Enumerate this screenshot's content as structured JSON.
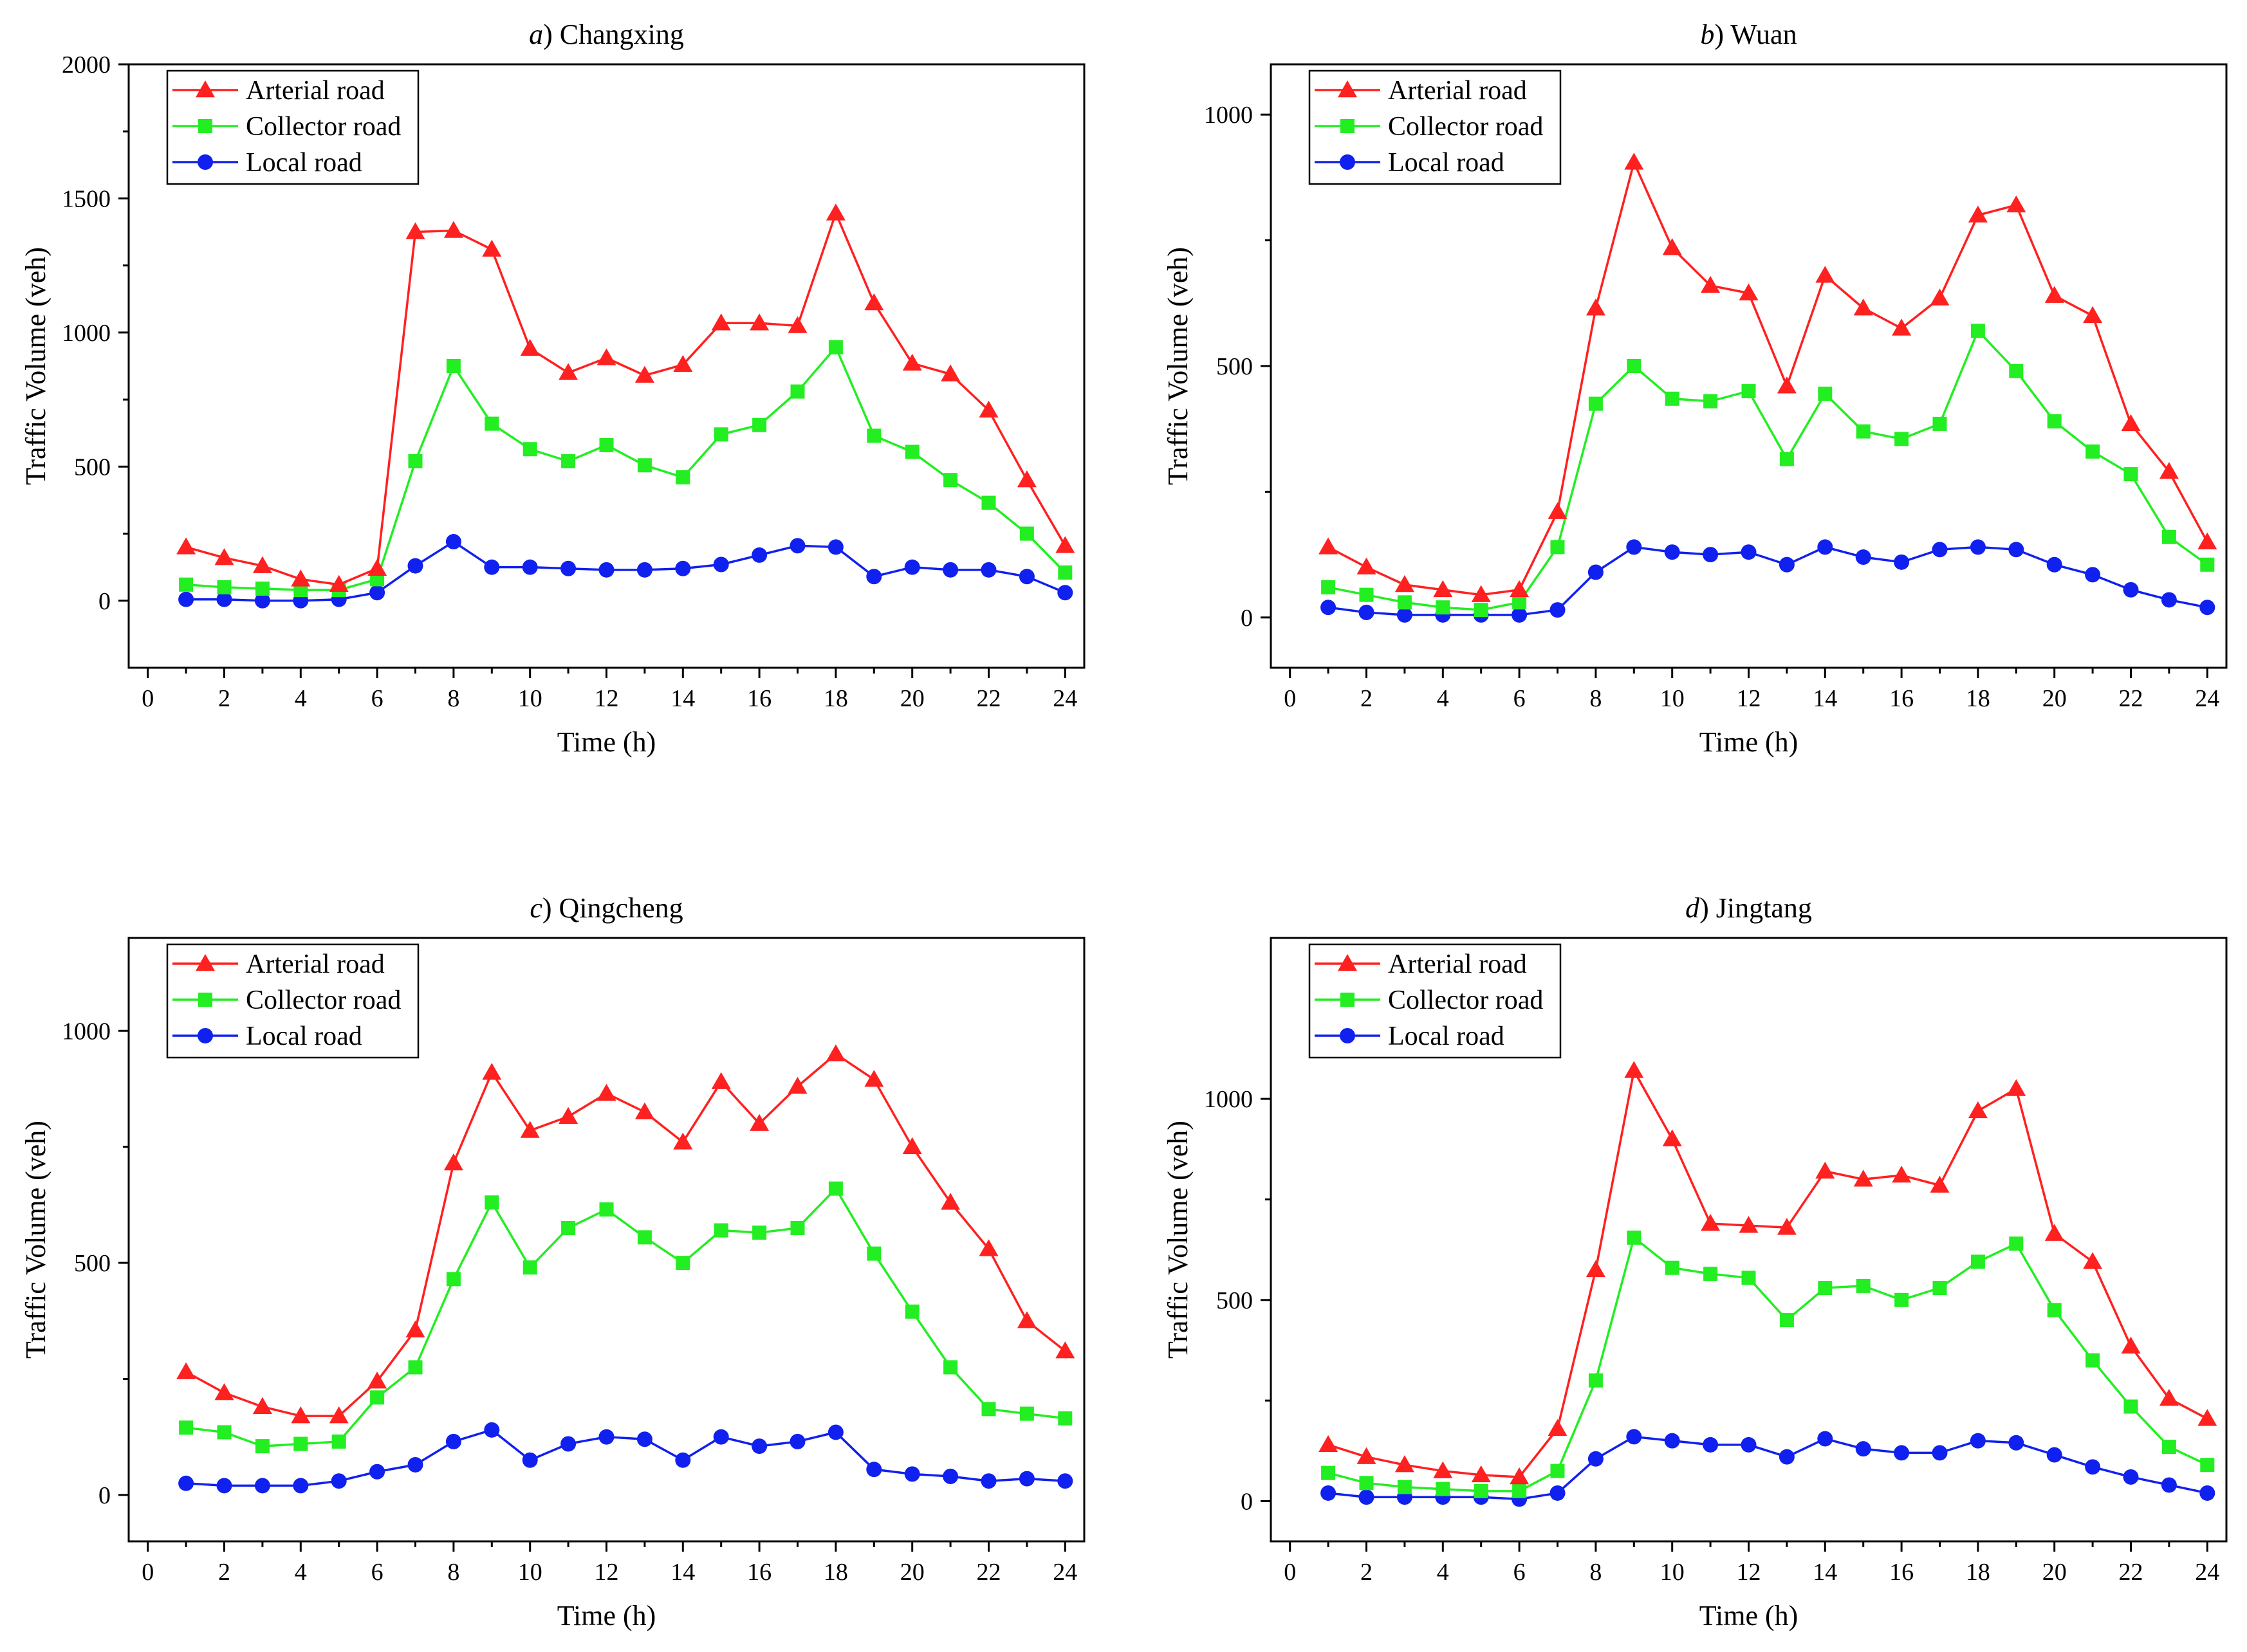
{
  "chart_data": [
    {
      "type": "line",
      "title_letter": "a",
      "title": ") Changxing",
      "xlabel": "Time (h)",
      "ylabel": "Traffic Volume (veh)",
      "xlim": [
        -0.5,
        24.5
      ],
      "ylim": [
        -250,
        2000
      ],
      "xticks": [
        0,
        2,
        4,
        6,
        8,
        10,
        12,
        14,
        16,
        18,
        20,
        22,
        24
      ],
      "yticks": [
        0,
        500,
        1000,
        1500,
        2000
      ],
      "legend_position": "top-left",
      "x": [
        1,
        2,
        3,
        4,
        5,
        6,
        7,
        8,
        9,
        10,
        11,
        12,
        13,
        14,
        15,
        16,
        17,
        18,
        19,
        20,
        21,
        22,
        23,
        24
      ],
      "series": [
        {
          "name": "Arterial road",
          "color": "#ff2020",
          "marker": "triangle",
          "values": [
            200,
            160,
            130,
            80,
            60,
            120,
            1375,
            1380,
            1310,
            940,
            850,
            905,
            840,
            880,
            1035,
            1035,
            1025,
            1445,
            1110,
            885,
            845,
            710,
            450,
            205
          ]
        },
        {
          "name": "Collector road",
          "color": "#22ee22",
          "marker": "square",
          "values": [
            60,
            50,
            45,
            40,
            40,
            80,
            520,
            875,
            660,
            565,
            520,
            580,
            505,
            460,
            620,
            655,
            780,
            945,
            615,
            555,
            450,
            365,
            250,
            105
          ]
        },
        {
          "name": "Local road",
          "color": "#1020ee",
          "marker": "circle",
          "values": [
            5,
            5,
            0,
            0,
            5,
            30,
            130,
            220,
            125,
            125,
            120,
            115,
            115,
            120,
            135,
            170,
            205,
            200,
            90,
            125,
            115,
            115,
            90,
            30
          ]
        }
      ]
    },
    {
      "type": "line",
      "title_letter": "b",
      "title": ") Wuan",
      "xlabel": "Time (h)",
      "ylabel": "Traffic Volume (veh)",
      "xlim": [
        -0.5,
        24.5
      ],
      "ylim": [
        -100,
        1100
      ],
      "xticks": [
        0,
        2,
        4,
        6,
        8,
        10,
        12,
        14,
        16,
        18,
        20,
        22,
        24
      ],
      "yticks": [
        0,
        500,
        1000
      ],
      "legend_position": "top-left",
      "x": [
        1,
        2,
        3,
        4,
        5,
        6,
        7,
        8,
        9,
        10,
        11,
        12,
        13,
        14,
        15,
        16,
        17,
        18,
        19,
        20,
        21,
        22,
        23,
        24
      ],
      "series": [
        {
          "name": "Arterial road",
          "color": "#ff2020",
          "marker": "triangle",
          "values": [
            140,
            100,
            65,
            55,
            45,
            55,
            210,
            615,
            905,
            735,
            660,
            645,
            460,
            680,
            615,
            575,
            635,
            800,
            820,
            640,
            600,
            385,
            290,
            150
          ]
        },
        {
          "name": "Collector road",
          "color": "#22ee22",
          "marker": "square",
          "values": [
            60,
            45,
            30,
            20,
            15,
            30,
            140,
            425,
            500,
            435,
            430,
            450,
            315,
            445,
            370,
            355,
            385,
            570,
            490,
            390,
            330,
            285,
            160,
            105
          ]
        },
        {
          "name": "Local road",
          "color": "#1020ee",
          "marker": "circle",
          "values": [
            20,
            10,
            5,
            5,
            5,
            5,
            15,
            90,
            140,
            130,
            125,
            130,
            105,
            140,
            120,
            110,
            135,
            140,
            135,
            105,
            85,
            55,
            35,
            20
          ]
        }
      ]
    },
    {
      "type": "line",
      "title_letter": "c",
      "title": ") Qingcheng",
      "xlabel": "Time (h)",
      "ylabel": "Traffic Volume (veh)",
      "xlim": [
        -0.5,
        24.5
      ],
      "ylim": [
        -100,
        1200
      ],
      "xticks": [
        0,
        2,
        4,
        6,
        8,
        10,
        12,
        14,
        16,
        18,
        20,
        22,
        24
      ],
      "yticks": [
        0,
        500,
        1000
      ],
      "legend_position": "top-left",
      "x": [
        1,
        2,
        3,
        4,
        5,
        6,
        7,
        8,
        9,
        10,
        11,
        12,
        13,
        14,
        15,
        16,
        17,
        18,
        19,
        20,
        21,
        22,
        23,
        24
      ],
      "series": [
        {
          "name": "Arterial road",
          "color": "#ff2020",
          "marker": "triangle",
          "values": [
            265,
            220,
            190,
            170,
            170,
            245,
            355,
            715,
            910,
            785,
            815,
            865,
            825,
            760,
            890,
            800,
            880,
            950,
            895,
            750,
            630,
            530,
            375,
            310
          ]
        },
        {
          "name": "Collector road",
          "color": "#22ee22",
          "marker": "square",
          "values": [
            145,
            135,
            105,
            110,
            115,
            210,
            275,
            465,
            630,
            490,
            575,
            615,
            555,
            500,
            570,
            565,
            575,
            660,
            520,
            395,
            275,
            185,
            175,
            165
          ]
        },
        {
          "name": "Local road",
          "color": "#1020ee",
          "marker": "circle",
          "values": [
            25,
            20,
            20,
            20,
            30,
            50,
            65,
            115,
            140,
            75,
            110,
            125,
            120,
            75,
            125,
            105,
            115,
            135,
            55,
            45,
            40,
            30,
            35,
            30
          ]
        }
      ]
    },
    {
      "type": "line",
      "title_letter": "d",
      "title": ") Jingtang",
      "xlabel": "Time (h)",
      "ylabel": "Traffic Volume (veh)",
      "xlim": [
        -0.5,
        24.5
      ],
      "ylim": [
        -100,
        1400
      ],
      "xticks": [
        0,
        2,
        4,
        6,
        8,
        10,
        12,
        14,
        16,
        18,
        20,
        22,
        24
      ],
      "yticks": [
        0,
        500,
        1000
      ],
      "legend_position": "top-left",
      "x": [
        1,
        2,
        3,
        4,
        5,
        6,
        7,
        8,
        9,
        10,
        11,
        12,
        13,
        14,
        15,
        16,
        17,
        18,
        19,
        20,
        21,
        22,
        23,
        24
      ],
      "series": [
        {
          "name": "Arterial road",
          "color": "#ff2020",
          "marker": "triangle",
          "values": [
            140,
            110,
            90,
            75,
            65,
            60,
            180,
            575,
            1070,
            900,
            690,
            685,
            680,
            820,
            800,
            810,
            785,
            970,
            1025,
            665,
            595,
            385,
            255,
            205
          ]
        },
        {
          "name": "Collector road",
          "color": "#22ee22",
          "marker": "square",
          "values": [
            70,
            45,
            35,
            30,
            25,
            25,
            75,
            300,
            655,
            580,
            565,
            555,
            450,
            530,
            535,
            500,
            530,
            595,
            640,
            475,
            350,
            235,
            135,
            90
          ]
        },
        {
          "name": "Local road",
          "color": "#1020ee",
          "marker": "circle",
          "values": [
            20,
            10,
            10,
            10,
            10,
            5,
            20,
            105,
            160,
            150,
            140,
            140,
            110,
            155,
            130,
            120,
            120,
            150,
            145,
            115,
            85,
            60,
            40,
            20
          ]
        }
      ]
    }
  ]
}
